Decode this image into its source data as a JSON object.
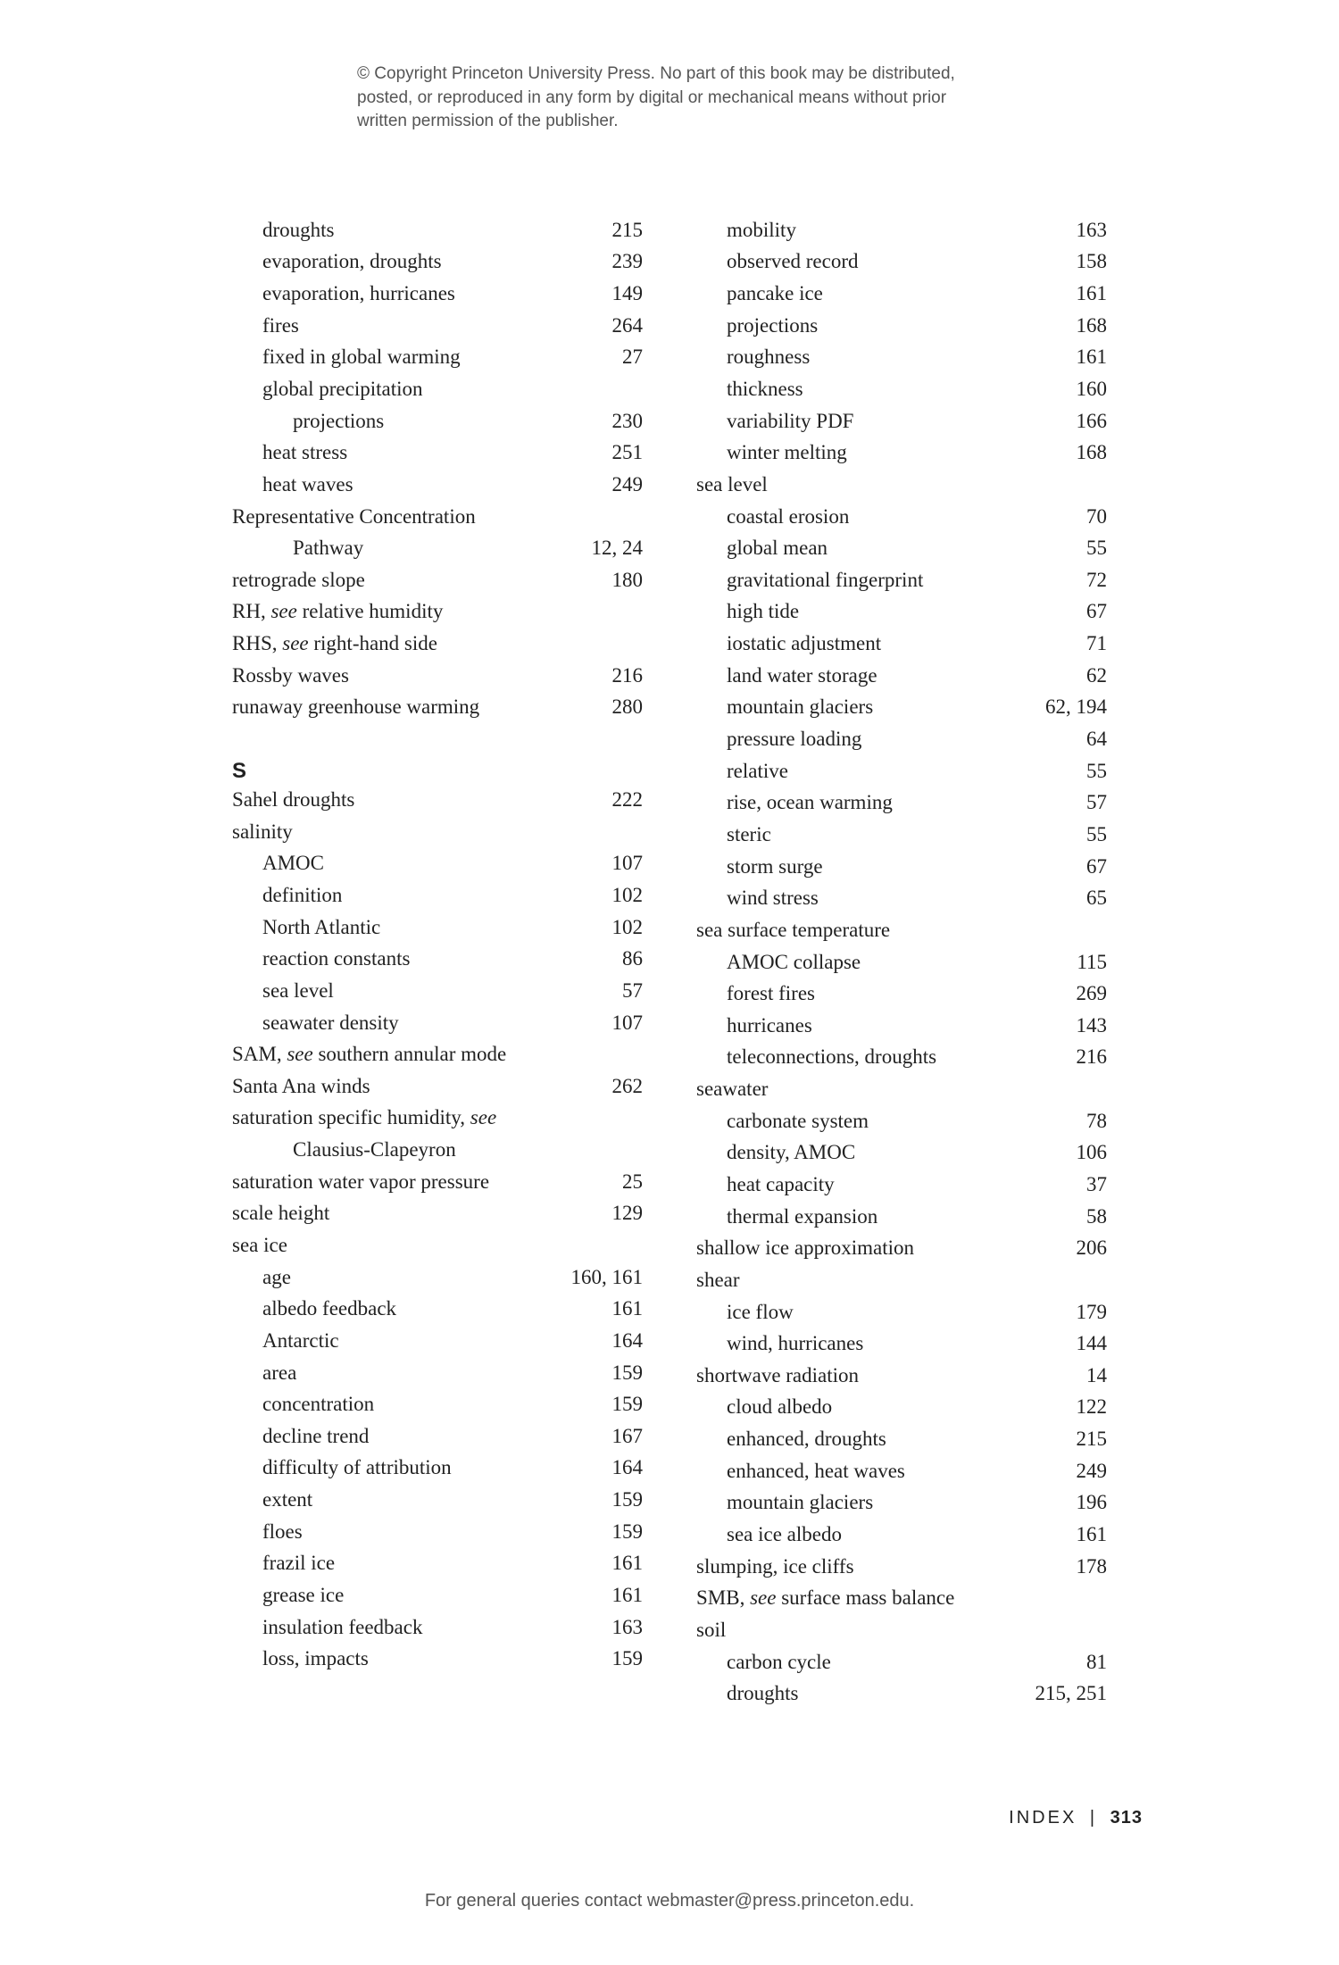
{
  "copyright": "© Copyright Princeton University Press. No part of this book may be distributed, posted, or reproduced in any form by digital or mechanical means without prior written permission of the publisher.",
  "bottom_note": "For general queries contact webmaster@press.princeton.edu.",
  "footer": {
    "label": "INDEX",
    "sep": "|",
    "page": "313"
  },
  "left": [
    {
      "term": "droughts",
      "pages": "215",
      "indent": 1
    },
    {
      "term": "evaporation, droughts",
      "pages": "239",
      "indent": 1
    },
    {
      "term": "evaporation, hurricanes",
      "pages": "149",
      "indent": 1
    },
    {
      "term": "fires",
      "pages": "264",
      "indent": 1
    },
    {
      "term": "fixed in global warming",
      "pages": "27",
      "indent": 1
    },
    {
      "term": "global precipitation",
      "pages": "",
      "indent": 1
    },
    {
      "term": "projections",
      "pages": "230",
      "indent": 2
    },
    {
      "term": "heat stress",
      "pages": "251",
      "indent": 1
    },
    {
      "term": "heat waves",
      "pages": "249",
      "indent": 1
    },
    {
      "term": "Representative Concentration",
      "pages": "",
      "indent": 0
    },
    {
      "term": "Pathway",
      "pages": "12, 24",
      "indent": 2
    },
    {
      "term": "retrograde slope",
      "pages": "180",
      "indent": 0
    },
    {
      "term_html": "RH, <span class=\"italic\">see</span> relative humidity",
      "pages": "",
      "indent": 0
    },
    {
      "term_html": "RHS, <span class=\"italic\">see</span> right-hand side",
      "pages": "",
      "indent": 0
    },
    {
      "term": "Rossby waves",
      "pages": "216",
      "indent": 0
    },
    {
      "term": "runaway greenhouse warming",
      "pages": "280",
      "indent": 0
    },
    {
      "section": "S"
    },
    {
      "term": "Sahel droughts",
      "pages": "222",
      "indent": 0
    },
    {
      "term": "salinity",
      "pages": "",
      "indent": 0
    },
    {
      "term": "AMOC",
      "pages": "107",
      "indent": 1
    },
    {
      "term": "definition",
      "pages": "102",
      "indent": 1
    },
    {
      "term": "North Atlantic",
      "pages": "102",
      "indent": 1
    },
    {
      "term": "reaction constants",
      "pages": "86",
      "indent": 1
    },
    {
      "term": "sea level",
      "pages": "57",
      "indent": 1
    },
    {
      "term": "seawater density",
      "pages": "107",
      "indent": 1
    },
    {
      "term_html": "SAM, <span class=\"italic\">see</span> southern annular mode",
      "pages": "",
      "indent": 0
    },
    {
      "term": "Santa Ana winds",
      "pages": "262",
      "indent": 0
    },
    {
      "term_html": "saturation specific humidity, <span class=\"italic\">see</span>",
      "pages": "",
      "indent": 0
    },
    {
      "term": "Clausius-Clapeyron",
      "pages": "",
      "indent": 2
    },
    {
      "term": "saturation water vapor pressure",
      "pages": "25",
      "indent": 0
    },
    {
      "term": "scale height",
      "pages": "129",
      "indent": 0
    },
    {
      "term": "sea ice",
      "pages": "",
      "indent": 0
    },
    {
      "term": "age",
      "pages": "160, 161",
      "indent": 1
    },
    {
      "term": "albedo feedback",
      "pages": "161",
      "indent": 1
    },
    {
      "term": "Antarctic",
      "pages": "164",
      "indent": 1
    },
    {
      "term": "area",
      "pages": "159",
      "indent": 1
    },
    {
      "term": "concentration",
      "pages": "159",
      "indent": 1
    },
    {
      "term": "decline trend",
      "pages": "167",
      "indent": 1
    },
    {
      "term": "difficulty of attribution",
      "pages": "164",
      "indent": 1
    },
    {
      "term": "extent",
      "pages": "159",
      "indent": 1
    },
    {
      "term": "floes",
      "pages": "159",
      "indent": 1
    },
    {
      "term": "frazil ice",
      "pages": "161",
      "indent": 1
    },
    {
      "term": "grease ice",
      "pages": "161",
      "indent": 1
    },
    {
      "term": "insulation feedback",
      "pages": "163",
      "indent": 1
    },
    {
      "term": "loss, impacts",
      "pages": "159",
      "indent": 1
    }
  ],
  "right": [
    {
      "term": "mobility",
      "pages": "163",
      "indent": 1
    },
    {
      "term": "observed record",
      "pages": "158",
      "indent": 1
    },
    {
      "term": "pancake ice",
      "pages": "161",
      "indent": 1
    },
    {
      "term": "projections",
      "pages": "168",
      "indent": 1
    },
    {
      "term": "roughness",
      "pages": "161",
      "indent": 1
    },
    {
      "term": "thickness",
      "pages": "160",
      "indent": 1
    },
    {
      "term": "variability PDF",
      "pages": "166",
      "indent": 1
    },
    {
      "term": "winter melting",
      "pages": "168",
      "indent": 1
    },
    {
      "term": "sea level",
      "pages": "",
      "indent": 0
    },
    {
      "term": "coastal erosion",
      "pages": "70",
      "indent": 1
    },
    {
      "term": "global mean",
      "pages": "55",
      "indent": 1
    },
    {
      "term": "gravitational fingerprint",
      "pages": "72",
      "indent": 1
    },
    {
      "term": "high tide",
      "pages": "67",
      "indent": 1
    },
    {
      "term": "iostatic adjustment",
      "pages": "71",
      "indent": 1
    },
    {
      "term": "land water storage",
      "pages": "62",
      "indent": 1
    },
    {
      "term": "mountain glaciers",
      "pages": "62, 194",
      "indent": 1
    },
    {
      "term": "pressure loading",
      "pages": "64",
      "indent": 1
    },
    {
      "term": "relative",
      "pages": "55",
      "indent": 1
    },
    {
      "term": "rise, ocean warming",
      "pages": "57",
      "indent": 1
    },
    {
      "term": "steric",
      "pages": "55",
      "indent": 1
    },
    {
      "term": "storm surge",
      "pages": "67",
      "indent": 1
    },
    {
      "term": "wind stress",
      "pages": "65",
      "indent": 1
    },
    {
      "term": "sea surface temperature",
      "pages": "",
      "indent": 0
    },
    {
      "term": "AMOC collapse",
      "pages": "115",
      "indent": 1
    },
    {
      "term": "forest fires",
      "pages": "269",
      "indent": 1
    },
    {
      "term": "hurricanes",
      "pages": "143",
      "indent": 1
    },
    {
      "term": "teleconnections, droughts",
      "pages": "216",
      "indent": 1
    },
    {
      "term": "seawater",
      "pages": "",
      "indent": 0
    },
    {
      "term": "carbonate system",
      "pages": "78",
      "indent": 1
    },
    {
      "term": "density, AMOC",
      "pages": "106",
      "indent": 1
    },
    {
      "term": "heat capacity",
      "pages": "37",
      "indent": 1
    },
    {
      "term": "thermal expansion",
      "pages": "58",
      "indent": 1
    },
    {
      "term": "shallow ice approximation",
      "pages": "206",
      "indent": 0
    },
    {
      "term": "shear",
      "pages": "",
      "indent": 0
    },
    {
      "term": "ice flow",
      "pages": "179",
      "indent": 1
    },
    {
      "term": "wind, hurricanes",
      "pages": "144",
      "indent": 1
    },
    {
      "term": "shortwave radiation",
      "pages": "14",
      "indent": 0
    },
    {
      "term": "cloud albedo",
      "pages": "122",
      "indent": 1
    },
    {
      "term": "enhanced, droughts",
      "pages": "215",
      "indent": 1
    },
    {
      "term": "enhanced, heat waves",
      "pages": "249",
      "indent": 1
    },
    {
      "term": "mountain glaciers",
      "pages": "196",
      "indent": 1
    },
    {
      "term": "sea ice albedo",
      "pages": "161",
      "indent": 1
    },
    {
      "term": "slumping, ice cliffs",
      "pages": "178",
      "indent": 0
    },
    {
      "term_html": "SMB, <span class=\"italic\">see</span> surface mass balance",
      "pages": "",
      "indent": 0
    },
    {
      "term": "soil",
      "pages": "",
      "indent": 0
    },
    {
      "term": "carbon cycle",
      "pages": "81",
      "indent": 1
    },
    {
      "term": "droughts",
      "pages": "215, 251",
      "indent": 1
    }
  ]
}
